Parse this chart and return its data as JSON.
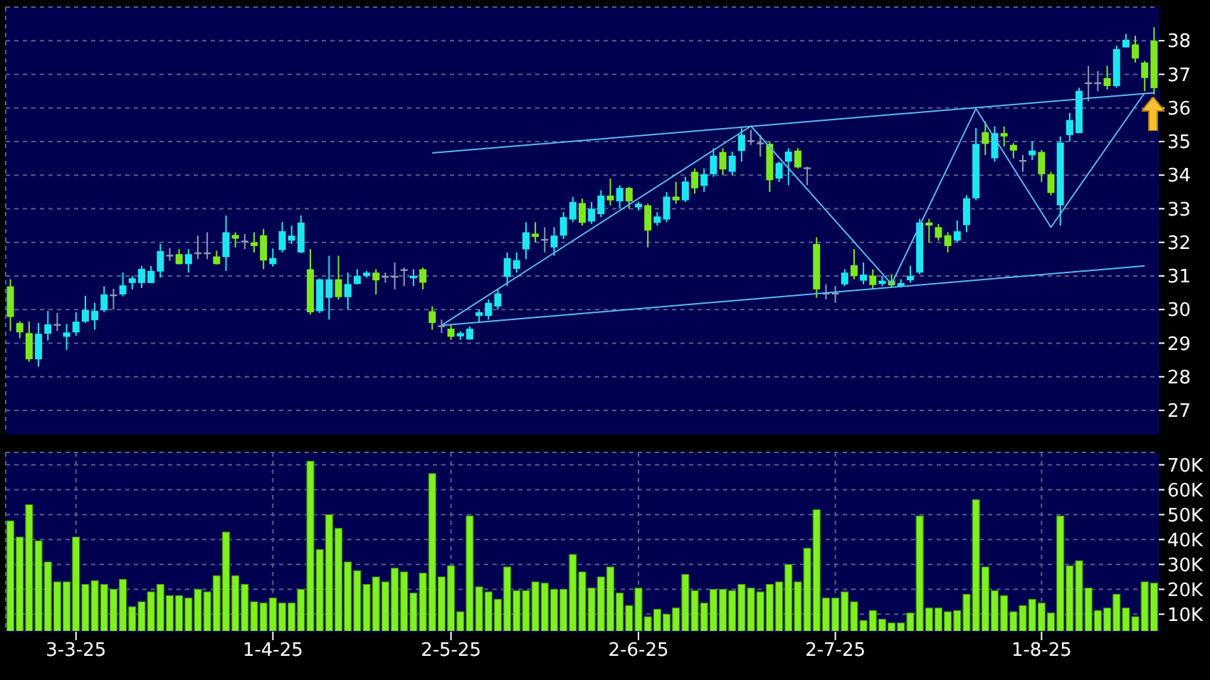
{
  "chart_data": [
    {
      "type": "candlestick",
      "categories": [
        null,
        null,
        null,
        null,
        null,
        null,
        null,
        null,
        null,
        null,
        null,
        null,
        null,
        null,
        null,
        null,
        null,
        null,
        null,
        null,
        null,
        null,
        null,
        null,
        null,
        null,
        null,
        null,
        null,
        null,
        null,
        null,
        null,
        null,
        null,
        null,
        null,
        null,
        null,
        null,
        null,
        null,
        null,
        null,
        null,
        null,
        null,
        null,
        null,
        null,
        null,
        null,
        null,
        null,
        null,
        null,
        null,
        null,
        null,
        null,
        null,
        null,
        null,
        null,
        null,
        null,
        null,
        null,
        null,
        null,
        null,
        null,
        null,
        null,
        null,
        null,
        null,
        null,
        null,
        null,
        null,
        null,
        null,
        null,
        null,
        null,
        null,
        null,
        null,
        null,
        null,
        null,
        null,
        null,
        null,
        null,
        null,
        null,
        null,
        null,
        null,
        null,
        null,
        null,
        null,
        null,
        null,
        null,
        null,
        null,
        null,
        null,
        null,
        null,
        null,
        null,
        null,
        null,
        null,
        null,
        null,
        null,
        null
      ],
      "series": [
        {
          "ohlc": [
            [
              30.69,
              30.9,
              29.36,
              29.78
            ],
            [
              29.6,
              29.65,
              29.15,
              29.32
            ],
            [
              29.3,
              29.64,
              28.45,
              28.52
            ],
            [
              28.52,
              29.6,
              28.3,
              29.28
            ],
            [
              29.28,
              29.96,
              29.08,
              29.56
            ],
            [
              29.57,
              29.9,
              29.36,
              29.57
            ],
            [
              29.19,
              29.57,
              28.8,
              29.32
            ],
            [
              29.32,
              29.92,
              29.22,
              29.64
            ],
            [
              29.64,
              30.41,
              29.6,
              29.99
            ],
            [
              29.68,
              30.2,
              29.4,
              29.96
            ],
            [
              29.98,
              30.69,
              29.92,
              30.45
            ],
            [
              30.45,
              30.62,
              30.0,
              30.45
            ],
            [
              30.45,
              31.1,
              30.4,
              30.72
            ],
            [
              30.79,
              31.0,
              30.6,
              30.93
            ],
            [
              30.79,
              31.3,
              30.64,
              31.21
            ],
            [
              30.79,
              31.3,
              30.79,
              31.15
            ],
            [
              31.13,
              31.96,
              30.95,
              31.74
            ],
            [
              31.63,
              31.83,
              31.45,
              31.63
            ],
            [
              31.65,
              31.8,
              31.35,
              31.35
            ],
            [
              31.35,
              31.8,
              31.1,
              31.65
            ],
            [
              31.7,
              32.2,
              31.5,
              31.7
            ],
            [
              31.7,
              32.3,
              31.5,
              31.7
            ],
            [
              31.58,
              31.75,
              31.35,
              31.35
            ],
            [
              31.56,
              32.8,
              31.15,
              32.3
            ],
            [
              32.22,
              32.3,
              31.85,
              32.11
            ],
            [
              32.05,
              32.25,
              31.8,
              32.05
            ],
            [
              32.0,
              32.3,
              31.7,
              31.89
            ],
            [
              32.21,
              32.4,
              31.2,
              31.46
            ],
            [
              31.35,
              31.82,
              31.28,
              31.53
            ],
            [
              31.77,
              32.6,
              31.7,
              32.33
            ],
            [
              32.05,
              32.5,
              31.95,
              32.2
            ],
            [
              31.7,
              32.8,
              31.68,
              32.59
            ],
            [
              31.2,
              31.8,
              29.85,
              29.92
            ],
            [
              29.95,
              30.92,
              29.9,
              30.9
            ],
            [
              30.35,
              31.6,
              29.7,
              30.9
            ],
            [
              30.9,
              31.6,
              30.3,
              30.37
            ],
            [
              30.37,
              31.1,
              30.0,
              30.76
            ],
            [
              30.76,
              31.2,
              30.75,
              31.0
            ],
            [
              31.0,
              31.15,
              30.95,
              31.1
            ],
            [
              31.1,
              31.2,
              30.45,
              30.87
            ],
            [
              31.0,
              31.1,
              30.8,
              31.0
            ],
            [
              31.0,
              31.4,
              30.6,
              31.0
            ],
            [
              31.2,
              31.25,
              30.7,
              31.2
            ],
            [
              30.93,
              31.2,
              30.7,
              31.0
            ],
            [
              31.2,
              31.25,
              30.6,
              30.8
            ],
            [
              29.95,
              30.1,
              29.4,
              29.6
            ],
            [
              29.53,
              29.7,
              29.3,
              29.53
            ],
            [
              29.43,
              29.55,
              29.1,
              29.19
            ],
            [
              29.2,
              29.35,
              29.1,
              29.3
            ],
            [
              29.11,
              29.5,
              29.1,
              29.43
            ],
            [
              29.81,
              30.0,
              29.6,
              29.92
            ],
            [
              29.81,
              30.3,
              29.7,
              30.2
            ],
            [
              30.09,
              30.6,
              30.0,
              30.48
            ],
            [
              30.97,
              31.7,
              30.7,
              31.53
            ],
            [
              31.21,
              31.7,
              31.1,
              31.47
            ],
            [
              31.79,
              32.6,
              31.5,
              32.3
            ],
            [
              32.26,
              32.6,
              32.0,
              32.16
            ],
            [
              32.1,
              32.45,
              31.7,
              32.1
            ],
            [
              31.85,
              32.45,
              31.6,
              32.2
            ],
            [
              32.2,
              32.9,
              32.1,
              32.75
            ],
            [
              32.68,
              33.35,
              32.6,
              33.2
            ],
            [
              33.17,
              33.3,
              32.5,
              32.58
            ],
            [
              32.62,
              33.2,
              32.55,
              33.0
            ],
            [
              32.84,
              33.55,
              32.75,
              33.39
            ],
            [
              33.39,
              33.9,
              33.1,
              33.25
            ],
            [
              33.22,
              33.7,
              33.0,
              33.62
            ],
            [
              33.62,
              33.65,
              33.0,
              33.22
            ],
            [
              33.04,
              33.2,
              32.95,
              33.15
            ],
            [
              33.1,
              33.15,
              31.85,
              32.35
            ],
            [
              32.58,
              32.9,
              32.5,
              32.77
            ],
            [
              32.68,
              33.5,
              32.6,
              33.36
            ],
            [
              33.36,
              33.8,
              33.15,
              33.25
            ],
            [
              33.25,
              33.95,
              33.2,
              33.81
            ],
            [
              34.1,
              34.2,
              33.45,
              33.61
            ],
            [
              33.68,
              34.2,
              33.5,
              34.03
            ],
            [
              34.03,
              34.8,
              33.95,
              34.58
            ],
            [
              34.69,
              34.8,
              34.0,
              34.17
            ],
            [
              34.1,
              34.7,
              34.0,
              34.58
            ],
            [
              34.72,
              35.4,
              34.4,
              35.2
            ],
            [
              35.04,
              35.35,
              34.9,
              35.04
            ],
            [
              34.97,
              35.2,
              34.55,
              34.97
            ],
            [
              34.93,
              35.0,
              33.5,
              33.85
            ],
            [
              33.9,
              34.4,
              33.8,
              34.36
            ],
            [
              34.4,
              34.8,
              33.7,
              34.7
            ],
            [
              34.73,
              34.8,
              34.2,
              34.23
            ],
            [
              34.23,
              34.25,
              33.7,
              34.23
            ],
            [
              31.95,
              32.15,
              30.35,
              30.6
            ],
            [
              30.5,
              30.75,
              30.3,
              30.5
            ],
            [
              30.5,
              30.7,
              30.2,
              30.5
            ],
            [
              30.75,
              31.2,
              30.7,
              31.1
            ],
            [
              31.32,
              31.8,
              30.9,
              31.0
            ],
            [
              30.86,
              31.4,
              30.75,
              31.04
            ],
            [
              31.01,
              31.2,
              30.6,
              30.73
            ],
            [
              30.76,
              31.0,
              30.7,
              30.86
            ],
            [
              30.86,
              31.05,
              30.65,
              30.72
            ],
            [
              30.69,
              30.9,
              30.65,
              30.79
            ],
            [
              30.87,
              31.3,
              30.8,
              31.0
            ],
            [
              31.1,
              32.7,
              31.05,
              32.59
            ],
            [
              32.59,
              32.7,
              32.0,
              32.5
            ],
            [
              32.45,
              32.55,
              32.05,
              32.14
            ],
            [
              32.21,
              32.3,
              31.7,
              31.89
            ],
            [
              32.05,
              32.65,
              32.0,
              32.33
            ],
            [
              32.51,
              33.4,
              32.3,
              33.31
            ],
            [
              33.31,
              35.4,
              33.25,
              34.93
            ],
            [
              35.28,
              35.6,
              34.6,
              34.93
            ],
            [
              34.5,
              35.45,
              34.4,
              35.25
            ],
            [
              35.25,
              35.45,
              34.85,
              35.15
            ],
            [
              34.9,
              34.95,
              34.5,
              34.73
            ],
            [
              34.45,
              34.6,
              34.1,
              34.45
            ],
            [
              34.59,
              35.0,
              34.45,
              34.73
            ],
            [
              34.69,
              34.75,
              33.8,
              34.03
            ],
            [
              34.03,
              34.1,
              33.4,
              33.47
            ],
            [
              33.1,
              35.15,
              32.5,
              34.97
            ],
            [
              35.19,
              35.85,
              35.0,
              35.64
            ],
            [
              35.25,
              36.6,
              35.25,
              36.51
            ],
            [
              36.76,
              37.25,
              36.2,
              36.76
            ],
            [
              36.76,
              37.1,
              36.5,
              36.76
            ],
            [
              36.89,
              37.25,
              36.55,
              36.65
            ],
            [
              36.65,
              37.85,
              36.6,
              37.75
            ],
            [
              37.8,
              38.2,
              37.8,
              38.03
            ],
            [
              37.89,
              38.15,
              37.35,
              37.47
            ],
            [
              37.35,
              37.4,
              36.5,
              36.89
            ],
            [
              38.0,
              38.4,
              36.4,
              36.59
            ]
          ],
          "colors": [
            "#7ee81e",
            "#7ee81e",
            "#7ee81e",
            "#1ee6f0",
            "#1ee6f0",
            "#8c9cb4",
            "#1ee6f0",
            "#1ee6f0",
            "#1ee6f0",
            "#1ee6f0",
            "#1ee6f0",
            "#8c9cb4",
            "#1ee6f0",
            "#1ee6f0",
            "#1ee6f0",
            "#1ee6f0",
            "#1ee6f0",
            "#8c9cb4",
            "#7ee81e",
            "#1ee6f0",
            "#8c9cb4",
            "#8c9cb4",
            "#7ee81e",
            "#1ee6f0",
            "#7ee81e",
            "#8c9cb4",
            "#7ee81e",
            "#7ee81e",
            "#1ee6f0",
            "#1ee6f0",
            "#1ee6f0",
            "#1ee6f0",
            "#7ee81e",
            "#1ee6f0",
            "#1ee6f0",
            "#7ee81e",
            "#1ee6f0",
            "#1ee6f0",
            "#1ee6f0",
            "#7ee81e",
            "#8c9cb4",
            "#8c9cb4",
            "#8c9cb4",
            "#1ee6f0",
            "#7ee81e",
            "#7ee81e",
            "#8c9cb4",
            "#7ee81e",
            "#1ee6f0",
            "#1ee6f0",
            "#1ee6f0",
            "#1ee6f0",
            "#1ee6f0",
            "#1ee6f0",
            "#1ee6f0",
            "#1ee6f0",
            "#7ee81e",
            "#8c9cb4",
            "#1ee6f0",
            "#1ee6f0",
            "#1ee6f0",
            "#7ee81e",
            "#1ee6f0",
            "#1ee6f0",
            "#7ee81e",
            "#1ee6f0",
            "#7ee81e",
            "#1ee6f0",
            "#7ee81e",
            "#1ee6f0",
            "#1ee6f0",
            "#7ee81e",
            "#1ee6f0",
            "#7ee81e",
            "#1ee6f0",
            "#1ee6f0",
            "#7ee81e",
            "#1ee6f0",
            "#1ee6f0",
            "#8c9cb4",
            "#8c9cb4",
            "#7ee81e",
            "#1ee6f0",
            "#1ee6f0",
            "#7ee81e",
            "#8c9cb4",
            "#7ee81e",
            "#8c9cb4",
            "#8c9cb4",
            "#1ee6f0",
            "#7ee81e",
            "#1ee6f0",
            "#7ee81e",
            "#1ee6f0",
            "#7ee81e",
            "#1ee6f0",
            "#1ee6f0",
            "#1ee6f0",
            "#7ee81e",
            "#7ee81e",
            "#7ee81e",
            "#1ee6f0",
            "#1ee6f0",
            "#1ee6f0",
            "#7ee81e",
            "#1ee6f0",
            "#7ee81e",
            "#7ee81e",
            "#8c9cb4",
            "#1ee6f0",
            "#7ee81e",
            "#7ee81e",
            "#1ee6f0",
            "#1ee6f0",
            "#1ee6f0",
            "#8c9cb4",
            "#8c9cb4",
            "#7ee81e",
            "#1ee6f0",
            "#1ee6f0",
            "#7ee81e",
            "#7ee81e",
            "#7ee81e"
          ]
        },
        {
          "type": "line",
          "color": "#5cb8f0",
          "values": [
            null,
            null,
            null,
            null,
            null,
            null,
            null,
            null,
            null,
            null,
            null,
            null,
            null,
            null,
            null,
            null,
            null,
            null,
            null,
            null,
            null,
            null,
            null,
            null,
            null,
            null,
            null,
            null,
            null,
            null,
            null,
            null,
            null,
            null,
            null,
            null,
            null,
            null,
            null,
            null,
            null,
            null,
            null,
            null,
            null,
            34.66,
            null,
            null,
            null,
            null,
            null,
            null,
            null,
            null,
            null,
            null,
            null,
            null,
            null,
            null,
            null,
            null,
            null,
            null,
            null,
            null,
            null,
            null,
            null,
            null,
            null,
            null,
            null,
            null,
            null,
            null,
            null,
            null,
            null,
            null,
            null,
            null,
            null,
            null,
            null,
            null,
            null,
            null,
            null,
            null,
            null,
            null,
            null,
            null,
            null,
            null,
            null,
            null,
            null,
            null,
            null,
            null,
            null,
            null,
            null,
            null,
            null,
            null,
            null,
            null,
            null,
            null,
            null,
            null,
            null,
            null,
            null,
            null,
            null,
            null,
            null,
            null,
            36.45
          ]
        },
        {
          "type": "line",
          "color": "#5cb8f0",
          "values": [
            null,
            null,
            null,
            null,
            null,
            null,
            null,
            null,
            null,
            null,
            null,
            null,
            null,
            null,
            null,
            null,
            null,
            null,
            null,
            null,
            null,
            null,
            null,
            null,
            null,
            null,
            null,
            null,
            null,
            null,
            null,
            null,
            null,
            null,
            null,
            null,
            null,
            null,
            null,
            null,
            null,
            null,
            null,
            null,
            null,
            null,
            29.53,
            null,
            null,
            null,
            null,
            null,
            null,
            null,
            null,
            null,
            null,
            null,
            null,
            null,
            null,
            null,
            null,
            null,
            null,
            null,
            null,
            null,
            null,
            null,
            null,
            null,
            null,
            null,
            null,
            null,
            null,
            null,
            null,
            null,
            null,
            null,
            null,
            null,
            null,
            null,
            null,
            null,
            null,
            null,
            null,
            null,
            null,
            null,
            null,
            null,
            null,
            null,
            null,
            null,
            null,
            null,
            null,
            null,
            null,
            null,
            null,
            null,
            null,
            null,
            null,
            null,
            null,
            null,
            null,
            null,
            null,
            null,
            null,
            null,
            null,
            31.3,
            null
          ]
        },
        {
          "type": "line",
          "color": "#5cb8f0",
          "values": [
            null,
            null,
            null,
            null,
            null,
            null,
            null,
            null,
            null,
            null,
            null,
            null,
            null,
            null,
            null,
            null,
            null,
            null,
            null,
            null,
            null,
            null,
            null,
            null,
            null,
            null,
            null,
            null,
            null,
            null,
            null,
            null,
            null,
            null,
            null,
            null,
            null,
            null,
            null,
            null,
            null,
            null,
            null,
            null,
            null,
            null,
            29.53,
            null,
            null,
            null,
            null,
            null,
            null,
            null,
            null,
            null,
            null,
            null,
            null,
            null,
            null,
            null,
            null,
            null,
            null,
            null,
            null,
            null,
            null,
            null,
            null,
            null,
            null,
            null,
            null,
            null,
            null,
            null,
            null,
            35.46,
            null,
            null,
            null,
            null,
            null,
            null,
            null,
            null,
            null,
            null,
            null,
            null,
            null,
            null,
            30.76,
            null,
            null,
            null,
            null,
            null,
            null,
            null,
            null,
            35.98,
            null,
            null,
            null,
            null,
            null,
            null,
            null,
            32.45,
            null,
            null,
            null,
            null,
            null,
            null,
            null,
            null,
            null,
            36.45,
            null
          ]
        }
      ],
      "ylim": [
        26.3,
        39
      ],
      "yticks": [
        27,
        28,
        29,
        30,
        31,
        32,
        33,
        34,
        35,
        36,
        37,
        38
      ],
      "grid": true,
      "tick_labels": "y"
    },
    {
      "type": "bar",
      "color": "#80f020",
      "categories": [
        null,
        null,
        null,
        null,
        null,
        null,
        null,
        "3-3-25",
        null,
        null,
        null,
        null,
        null,
        null,
        null,
        null,
        null,
        null,
        null,
        null,
        null,
        null,
        null,
        null,
        null,
        null,
        null,
        null,
        "1-4-25",
        null,
        null,
        null,
        null,
        null,
        null,
        null,
        null,
        null,
        null,
        null,
        null,
        null,
        null,
        null,
        null,
        null,
        null,
        "2-5-25",
        null,
        null,
        null,
        null,
        null,
        null,
        null,
        null,
        null,
        null,
        null,
        null,
        null,
        null,
        null,
        null,
        null,
        null,
        null,
        "2-6-25",
        null,
        null,
        null,
        null,
        null,
        null,
        null,
        null,
        null,
        null,
        null,
        null,
        null,
        null,
        null,
        null,
        null,
        null,
        null,
        null,
        "2-7-25",
        null,
        null,
        null,
        null,
        null,
        null,
        null,
        null,
        null,
        null,
        null,
        null,
        null,
        null,
        null,
        null,
        null,
        null,
        null,
        null,
        null,
        "1-8-25",
        null,
        null,
        null,
        null,
        null,
        null,
        null,
        null,
        null,
        null,
        null,
        null
      ],
      "values": [
        47500,
        41000,
        54000,
        39500,
        31000,
        23000,
        23000,
        41000,
        22000,
        23500,
        22000,
        20000,
        24000,
        13000,
        15000,
        19000,
        22000,
        17500,
        17500,
        16500,
        20000,
        19000,
        25500,
        43000,
        25500,
        22000,
        15000,
        14500,
        16500,
        14500,
        14500,
        20000,
        71500,
        36000,
        50000,
        44500,
        31000,
        27500,
        22000,
        25000,
        23000,
        28500,
        27000,
        18500,
        26500,
        66500,
        25000,
        29500,
        11000,
        49500,
        21000,
        19000,
        16000,
        29000,
        19500,
        19500,
        23000,
        22500,
        20000,
        20000,
        34000,
        27000,
        20500,
        25000,
        29000,
        18500,
        13500,
        20500,
        9000,
        12000,
        10000,
        12500,
        26000,
        19500,
        14500,
        20000,
        20000,
        19500,
        22000,
        20500,
        19000,
        22000,
        23000,
        30000,
        23000,
        36500,
        52000,
        16500,
        16500,
        19000,
        15000,
        7500,
        11500,
        8000,
        6500,
        6500,
        10500,
        49500,
        12500,
        12500,
        11000,
        11500,
        18000,
        56000,
        29000,
        19500,
        17500,
        11000,
        13500,
        16000,
        14500,
        10500,
        49500,
        29500,
        31500,
        20500,
        11500,
        12500,
        18000,
        12500,
        9000,
        23000,
        22500
      ],
      "ylim": [
        3000,
        75000
      ],
      "yticks": [
        {
          "value": 10000,
          "label": "10K"
        },
        {
          "value": 20000,
          "label": "20K"
        },
        {
          "value": 30000,
          "label": "30K"
        },
        {
          "value": 40000,
          "label": "40K"
        },
        {
          "value": 50000,
          "label": "50K"
        },
        {
          "value": 60000,
          "label": "60K"
        },
        {
          "value": 70000,
          "label": "70K"
        }
      ],
      "grid": true
    }
  ]
}
